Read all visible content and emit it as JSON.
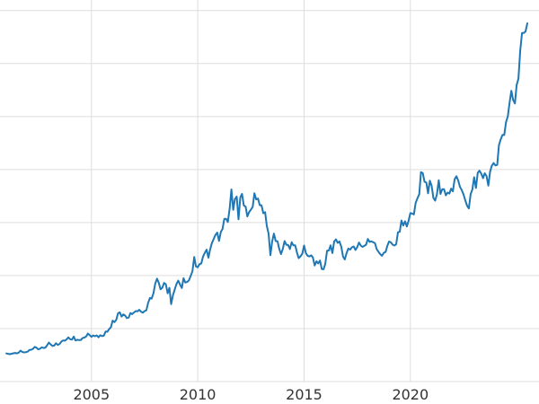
{
  "chart_data": {
    "type": "line",
    "title": "",
    "xlabel": "",
    "ylabel": "",
    "grid": true,
    "legend": "none",
    "line_color": "#1f77b4",
    "grid_color": "#dddddd",
    "background_color": "#ffffff",
    "tick_label_color": "#333333",
    "xlim": [
      2000.7,
      2026.05
    ],
    "ylim": [
      0,
      3600
    ],
    "xticks": [
      {
        "value": 2005,
        "label": "2005"
      },
      {
        "value": 2010,
        "label": "2010"
      },
      {
        "value": 2015,
        "label": "2015"
      },
      {
        "value": 2020,
        "label": "2020"
      }
    ],
    "ygrid": [
      0,
      500,
      1000,
      1500,
      2000,
      2500,
      3000,
      3500
    ],
    "start_year": 2001.0,
    "points_per_year": 12,
    "values": [
      265,
      262,
      258,
      263,
      267,
      270,
      266,
      274,
      292,
      279,
      275,
      277,
      282,
      297,
      301,
      308,
      327,
      319,
      304,
      310,
      323,
      317,
      319,
      343,
      368,
      350,
      336,
      340,
      362,
      346,
      355,
      376,
      388,
      386,
      398,
      417,
      400,
      396,
      424,
      388,
      394,
      392,
      391,
      410,
      415,
      425,
      453,
      438,
      422,
      435,
      428,
      435,
      418,
      437,
      429,
      433,
      473,
      470,
      495,
      513,
      575,
      561,
      582,
      644,
      653,
      613,
      634,
      623,
      599,
      603,
      646,
      636,
      651,
      665,
      662,
      677,
      659,
      650,
      665,
      672,
      743,
      789,
      783,
      833,
      923,
      971,
      933,
      871,
      885,
      930,
      918,
      833,
      884,
      730,
      814,
      869,
      919,
      952,
      916,
      883,
      975,
      934,
      939,
      955,
      995,
      1040,
      1175,
      1087,
      1078,
      1108,
      1115,
      1179,
      1215,
      1244,
      1169,
      1246,
      1307,
      1346,
      1383,
      1405,
      1327,
      1411,
      1439,
      1535,
      1536,
      1505,
      1628,
      1813,
      1620,
      1722,
      1746,
      1531,
      1737,
      1770,
      1662,
      1651,
      1558,
      1598,
      1622,
      1648,
      1776,
      1719,
      1726,
      1664,
      1664,
      1588,
      1598,
      1469,
      1394,
      1192,
      1323,
      1396,
      1326,
      1324,
      1253,
      1202,
      1251,
      1326,
      1291,
      1288,
      1250,
      1315,
      1285,
      1285,
      1216,
      1164,
      1182,
      1206,
      1283,
      1214,
      1187,
      1180,
      1191,
      1171,
      1095,
      1135,
      1114,
      1142,
      1061,
      1060,
      1111,
      1234,
      1237,
      1285,
      1212,
      1322,
      1342,
      1309,
      1322,
      1272,
      1178,
      1152,
      1212,
      1255,
      1244,
      1266,
      1275,
      1242,
      1267,
      1311,
      1283,
      1271,
      1280,
      1291,
      1345,
      1318,
      1322,
      1315,
      1305,
      1250,
      1224,
      1202,
      1187,
      1215,
      1222,
      1281,
      1321,
      1313,
      1292,
      1283,
      1295,
      1409,
      1413,
      1520,
      1472,
      1512,
      1463,
      1517,
      1589,
      1585,
      1577,
      1686,
      1730,
      1768,
      1975,
      1967,
      1885,
      1878,
      1776,
      1895,
      1847,
      1734,
      1707,
      1767,
      1900,
      1770,
      1814,
      1814,
      1757,
      1783,
      1774,
      1820,
      1795,
      1909,
      1937,
      1896,
      1837,
      1807,
      1765,
      1711,
      1660,
      1633,
      1768,
      1812,
      1928,
      1826,
      1969,
      1990,
      1962,
      1919,
      1965,
      1940,
      1848,
      1983,
      2036,
      2062,
      2039,
      2044,
      2230,
      2286,
      2327,
      2326,
      2447,
      2503,
      2634,
      2744,
      2657,
      2624,
      2798,
      2857,
      3123,
      3288,
      3289,
      3303,
      3380
    ]
  }
}
